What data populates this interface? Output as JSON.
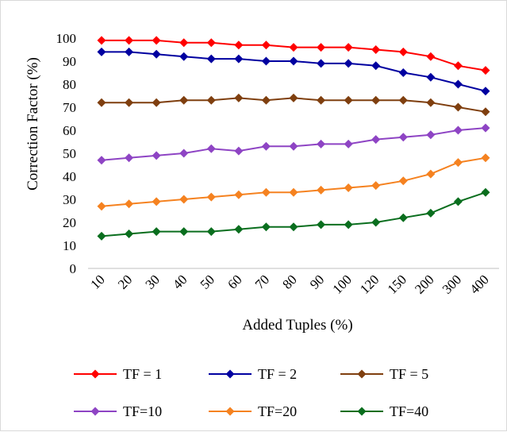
{
  "chart_data": {
    "type": "line",
    "title": "",
    "xlabel": "Added Tuples (%)",
    "ylabel": "Correction Factor (%)",
    "categories": [
      "10",
      "20",
      "30",
      "40",
      "50",
      "60",
      "70",
      "80",
      "90",
      "100",
      "120",
      "150",
      "200",
      "300",
      "400"
    ],
    "ylim": [
      0,
      100
    ],
    "yticks": [
      0,
      10,
      20,
      30,
      40,
      50,
      60,
      70,
      80,
      90,
      100
    ],
    "grid": false,
    "legend_position": "bottom",
    "marker": "diamond",
    "series": [
      {
        "name": "TF = 1",
        "color": "#ff0000",
        "values": [
          99,
          99,
          99,
          98,
          98,
          97,
          97,
          96,
          96,
          96,
          95,
          94,
          92,
          88,
          86
        ]
      },
      {
        "name": "TF = 2",
        "color": "#0000a0",
        "values": [
          94,
          94,
          93,
          92,
          91,
          91,
          90,
          90,
          89,
          89,
          88,
          85,
          83,
          80,
          77
        ]
      },
      {
        "name": "TF = 5",
        "color": "#7f3f0f",
        "values": [
          72,
          72,
          72,
          73,
          73,
          74,
          73,
          74,
          73,
          73,
          73,
          73,
          72,
          70,
          68
        ]
      },
      {
        "name": "TF=10",
        "color": "#8e44c4",
        "values": [
          47,
          48,
          49,
          50,
          52,
          51,
          53,
          53,
          54,
          54,
          56,
          57,
          58,
          60,
          61
        ]
      },
      {
        "name": "TF=20",
        "color": "#f58220",
        "values": [
          27,
          28,
          29,
          30,
          31,
          32,
          33,
          33,
          34,
          35,
          36,
          38,
          41,
          46,
          48
        ]
      },
      {
        "name": "TF=40",
        "color": "#0a6e1e",
        "values": [
          14,
          15,
          16,
          16,
          16,
          17,
          18,
          18,
          19,
          19,
          20,
          22,
          24,
          29,
          33
        ]
      }
    ]
  }
}
